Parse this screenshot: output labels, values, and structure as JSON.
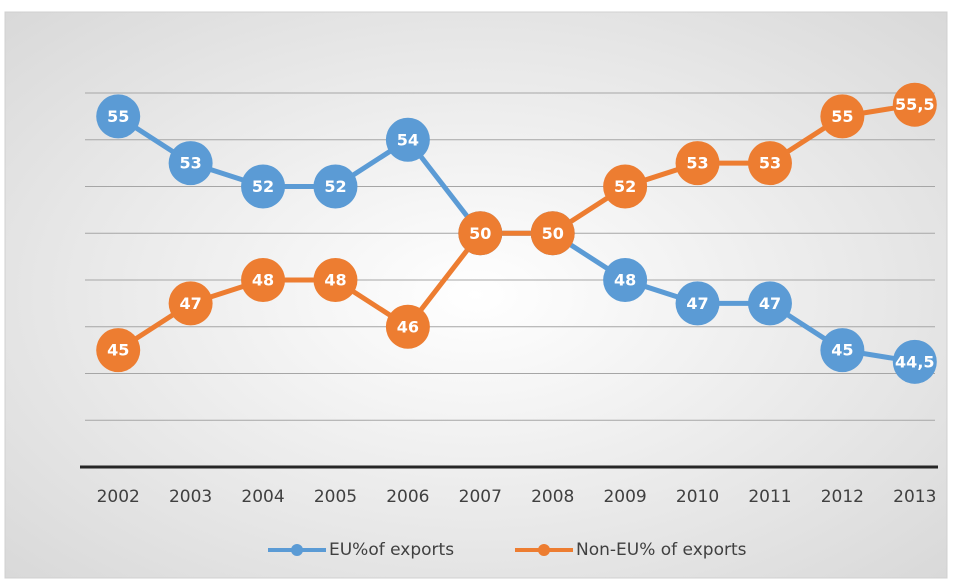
{
  "chart_data": {
    "type": "line",
    "categories": [
      "2002",
      "2003",
      "2004",
      "2005",
      "2006",
      "2007",
      "2008",
      "2009",
      "2010",
      "2011",
      "2012",
      "2013"
    ],
    "series": [
      {
        "name": "EU%of exports",
        "color": "#5b9bd5",
        "values": [
          55,
          53,
          52,
          52,
          54,
          50,
          50,
          48,
          47,
          47,
          45,
          44.5
        ],
        "value_labels": [
          "55",
          "53",
          "52",
          "52",
          "54",
          "50",
          "50",
          "48",
          "47",
          "47",
          "45",
          "44,5"
        ]
      },
      {
        "name": "Non-EU% of exports",
        "color": "#ed7d31",
        "values": [
          45,
          47,
          48,
          48,
          46,
          50,
          50,
          52,
          53,
          53,
          55,
          55.5
        ],
        "value_labels": [
          "45",
          "47",
          "48",
          "48",
          "46",
          "50",
          "50",
          "52",
          "53",
          "53",
          "55",
          "55,5"
        ]
      }
    ],
    "ylim": [
      40,
      56
    ],
    "yticks": [
      40,
      42,
      44,
      46,
      48,
      50,
      52,
      54,
      56
    ],
    "grid": true,
    "legend": "bottom"
  }
}
